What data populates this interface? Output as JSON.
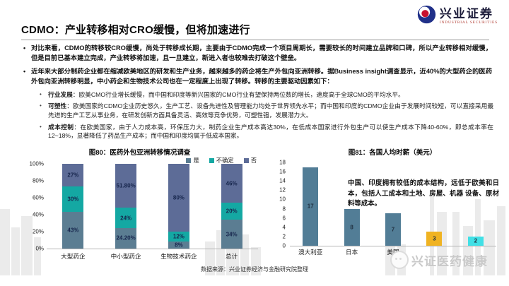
{
  "header": {
    "title": "CDMO：产业转移相对CRO缓慢，但将加速进行",
    "logo": {
      "name": "兴业证券",
      "subtitle": "INDUSTRIAL SECURITIES"
    }
  },
  "bullets": [
    "对比来看，CDMO的转移较CRO缓慢，尚处于转移成长期，主要由于CDMO完成一个项目周期长，需要较长的时间建立品牌和口碑，所以产业转移相对缓慢，但是目前已基本建立完成，产业转移将加速，且一旦建立，新进入者也较难去打破这个壁垒。",
    "近年来大部分制药企业都在缩减欧美地区的研发和生产业务，越来越多的药企将生产外包向亚洲转移。据Business insight调查显示，近40%的大型药企的医药外包向亚洲转移明显，中小药企和生物技术公司也在一定程度上出现了转移。转移的主要驱动因素如下："
  ],
  "drivers": [
    {
      "keyword": "行业发展",
      "text": "：欧美CMO行业增长缓慢，而中国和印度等新兴国家的CMO行业有望保持两位数的增长，速度高于全球CMO的平均水平。"
    },
    {
      "keyword": "可塑性",
      "text": "：欧美国家的CDMO企业历史悠久，生产工艺、设备先进性及管理能力均处于世界领先水平；而中国和印度的CDMO企业由于发展时间较短，可以直接采用最先进的生产工艺从事业务，在研发创新方面具备灵活、高效等竞争优势，可塑性强，发展潜力大。"
    },
    {
      "keyword": "成本控制",
      "text": "：在欧美国家，由于人力成本高，环保压力大，制药企业生产成本高达30%，在低成本国家进行外包生产可以使生产成本下降40-60%，即总成本率在12~18%，显著降低了药品生产成本；而中国和印度均属于低成本国家。"
    }
  ],
  "chart_data": [
    {
      "type": "bar",
      "subtype": "stacked-100",
      "title": "图80：医药外包亚洲转移情况调查",
      "categories": [
        "大型药企",
        "中小型药企",
        "生物技术药企",
        "总计"
      ],
      "series": [
        {
          "name": "是",
          "color": "#5b7d92",
          "values": [
            43,
            24.2,
            8,
            34
          ],
          "labels": [
            "43%",
            "24.20%",
            "8%",
            "34%"
          ]
        },
        {
          "name": "不确定",
          "color": "#14a8a3",
          "values": [
            30,
            24,
            12,
            20
          ],
          "labels": [
            "30%",
            "24%",
            "12%",
            "20%"
          ]
        },
        {
          "name": "否",
          "color": "#5d6c97",
          "values": [
            27,
            51.8,
            80,
            46
          ],
          "labels": [
            "27%",
            "51.80%",
            "80%",
            "46%"
          ]
        }
      ],
      "y_ticks": [
        "100%",
        "80%",
        "60%",
        "40%",
        "20%",
        "0%"
      ],
      "ylim": [
        0,
        100
      ],
      "grid": false,
      "legend_position": "top-right"
    },
    {
      "type": "bar",
      "title": "图81：各国人均时薪（美元）",
      "categories": [
        "澳大利亚",
        "日本",
        "美国",
        "",
        ""
      ],
      "values": [
        17,
        8,
        7,
        3,
        2
      ],
      "bar_colors": [
        "#527d96",
        "#527d96",
        "#527d96",
        "#f0b322",
        "#41e0e6"
      ],
      "y_ticks": [
        "18",
        "16",
        "14",
        "12",
        "10",
        "8",
        "6",
        "4",
        "2",
        "0"
      ],
      "ylim": [
        0,
        18
      ],
      "grid": false,
      "annotation": "中国、印度拥有较低的成本结构，远低于欧美和日本，包括人工成本和土地、房屋、机器 设备、原材料等成本。"
    }
  ],
  "footer": {
    "source": "数据来源：兴业证券经济与金融研究院整理",
    "watermark": "兴证医药健康"
  },
  "colors": {
    "accent_red": "#cc0000",
    "footer_navy": "#164370",
    "footer_red": "#e03a1f",
    "bar_yes": "#5b7d92",
    "bar_uncertain": "#14a8a3",
    "bar_no": "#5d6c97",
    "bar_blue": "#527d96",
    "bar_yellow": "#f0b322",
    "bar_cyan": "#41e0e6"
  }
}
